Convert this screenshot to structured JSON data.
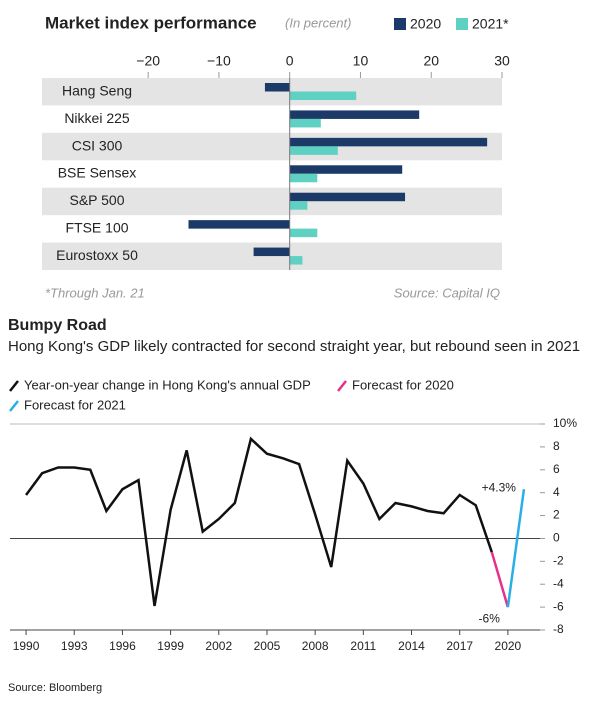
{
  "chart_data": [
    {
      "type": "bar",
      "orientation": "horizontal",
      "title": "Market index performance",
      "subtitle": "(In percent)",
      "categories": [
        "Hang Seng",
        "Nikkei 225",
        "CSI 300",
        "BSE Sensex",
        "S&P 500",
        "FTSE 100",
        "Eurostoxx 50"
      ],
      "series": [
        {
          "name": "2020",
          "color": "#1c3a68",
          "values": [
            -3.5,
            18.3,
            27.9,
            15.9,
            16.3,
            -14.3,
            -5.1
          ]
        },
        {
          "name": "2021*",
          "color": "#5fd1c2",
          "values": [
            9.4,
            4.4,
            6.8,
            3.9,
            2.5,
            3.9,
            1.8
          ]
        }
      ],
      "xlim": [
        -35,
        30
      ],
      "xticks": [
        {
          "value": -20,
          "label": "−20"
        },
        {
          "value": -10,
          "label": "−10"
        },
        0,
        10,
        20,
        30
      ],
      "legend": "top-right",
      "footnote": "*Through Jan. 21",
      "source": "Source: Capital IQ"
    },
    {
      "type": "line",
      "title": "Bumpy Road",
      "subtitle": "Hong Kong's GDP likely contracted for second straight year, but rebound seen in 2021",
      "x": [
        1990,
        1991,
        1992,
        1993,
        1994,
        1995,
        1996,
        1997,
        1998,
        1999,
        2000,
        2001,
        2002,
        2003,
        2004,
        2005,
        2006,
        2007,
        2008,
        2009,
        2010,
        2011,
        2012,
        2013,
        2014,
        2015,
        2016,
        2017,
        2018,
        2019,
        2020,
        2021
      ],
      "series": [
        {
          "name": "Year-on-year change in Hong Kong's annual GDP",
          "color": "#111111",
          "values": [
            3.8,
            5.7,
            6.2,
            6.2,
            6.0,
            2.4,
            4.3,
            5.1,
            -5.9,
            2.5,
            7.7,
            0.6,
            1.7,
            3.1,
            8.7,
            7.4,
            7.0,
            6.5,
            2.1,
            -2.5,
            6.8,
            4.8,
            1.7,
            3.1,
            2.8,
            2.4,
            2.2,
            3.8,
            2.9,
            -1.2,
            null,
            null
          ]
        },
        {
          "name": "Forecast for 2020",
          "color": "#e8308a",
          "values": [
            null,
            null,
            null,
            null,
            null,
            null,
            null,
            null,
            null,
            null,
            null,
            null,
            null,
            null,
            null,
            null,
            null,
            null,
            null,
            null,
            null,
            null,
            null,
            null,
            null,
            null,
            null,
            null,
            null,
            -1.2,
            -6.0,
            null
          ]
        },
        {
          "name": "Forecast for 2021",
          "color": "#2aaee8",
          "values": [
            null,
            null,
            null,
            null,
            null,
            null,
            null,
            null,
            null,
            null,
            null,
            null,
            null,
            null,
            null,
            null,
            null,
            null,
            null,
            null,
            null,
            null,
            null,
            null,
            null,
            null,
            null,
            null,
            null,
            null,
            -6.0,
            4.3
          ]
        }
      ],
      "xlim": [
        1989,
        2022
      ],
      "xticks": [
        1990,
        1993,
        1996,
        1999,
        2002,
        2005,
        2008,
        2011,
        2014,
        2017,
        2020
      ],
      "ylim": [
        -8,
        10
      ],
      "yticks": [
        {
          "value": 10,
          "label": "10%"
        },
        8,
        6,
        4,
        2,
        0,
        -2,
        -4,
        -6,
        -8
      ],
      "grid": false,
      "annotations": [
        {
          "text": "+4.3%",
          "x": 2021,
          "y": 4.3
        },
        {
          "text": "-6%",
          "x": 2020,
          "y": -6.0
        }
      ],
      "source": "Source: Bloomberg"
    }
  ]
}
